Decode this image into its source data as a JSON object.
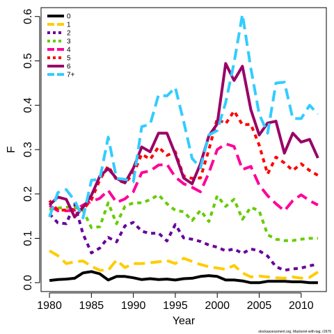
{
  "chart_data": {
    "type": "line",
    "xlabel": "Year",
    "ylabel": "F",
    "xlim": [
      1979,
      2013
    ],
    "ylim": [
      -0.02,
      0.62
    ],
    "x_ticks": [
      1980,
      1985,
      1990,
      1995,
      2000,
      2005,
      2010
    ],
    "y_ticks": [
      0.0,
      0.1,
      0.2,
      0.3,
      0.4,
      0.5,
      0.6
    ],
    "y_tick_labels": [
      "0.0",
      "0.1",
      "0.2",
      "0.3",
      "0.4",
      "0.5",
      "0.6"
    ],
    "legend_position": "top-left",
    "credit": "stockassessment.org, Mackerel-with-tag, r2676",
    "x": [
      1980,
      1981,
      1982,
      1983,
      1984,
      1985,
      1986,
      1987,
      1988,
      1989,
      1990,
      1991,
      1992,
      1993,
      1994,
      1995,
      1996,
      1997,
      1998,
      1999,
      2000,
      2001,
      2002,
      2003,
      2004,
      2005,
      2006,
      2007,
      2008,
      2009,
      2010,
      2011,
      2012
    ],
    "series": [
      {
        "name": "0",
        "color": "#000000",
        "dash": "solid",
        "values": [
          0.005,
          0.007,
          0.008,
          0.01,
          0.022,
          0.025,
          0.02,
          0.006,
          0.014,
          0.014,
          0.011,
          0.007,
          0.009,
          0.007,
          0.008,
          0.006,
          0.009,
          0.01,
          0.014,
          0.016,
          0.014,
          0.006,
          0.006,
          0.004,
          0.0,
          0.0,
          0.003,
          0.003,
          0.003,
          0.002,
          0.002,
          0.0,
          0.0
        ]
      },
      {
        "name": "1",
        "color": "#FFCC00",
        "dash": "long",
        "values": [
          0.072,
          0.061,
          0.043,
          0.047,
          0.049,
          0.037,
          0.028,
          0.028,
          0.051,
          0.034,
          0.043,
          0.043,
          0.045,
          0.047,
          0.05,
          0.043,
          0.055,
          0.048,
          0.041,
          0.036,
          0.033,
          0.03,
          0.039,
          0.022,
          0.013,
          0.015,
          0.013,
          0.011,
          0.01,
          0.013,
          0.01,
          0.012,
          0.024
        ]
      },
      {
        "name": "2",
        "color": "#660099",
        "dash": "short",
        "values": [
          0.155,
          0.135,
          0.133,
          0.177,
          0.11,
          0.067,
          0.078,
          0.102,
          0.092,
          0.128,
          0.136,
          0.116,
          0.111,
          0.112,
          0.094,
          0.131,
          0.101,
          0.098,
          0.093,
          0.085,
          0.08,
          0.072,
          0.076,
          0.066,
          0.076,
          0.072,
          0.06,
          0.036,
          0.028,
          0.031,
          0.033,
          0.038,
          0.042
        ]
      },
      {
        "name": "3",
        "color": "#66CC00",
        "dash": "short",
        "values": [
          0.165,
          0.168,
          0.17,
          0.17,
          0.163,
          0.124,
          0.126,
          0.18,
          0.133,
          0.172,
          0.18,
          0.18,
          0.187,
          0.198,
          0.178,
          0.163,
          0.16,
          0.14,
          0.163,
          0.138,
          0.196,
          0.172,
          0.188,
          0.143,
          0.17,
          0.162,
          0.108,
          0.098,
          0.095,
          0.095,
          0.098,
          0.1,
          0.1
        ]
      },
      {
        "name": "4",
        "color": "#FF0099",
        "dash": "long",
        "values": [
          0.174,
          0.162,
          0.162,
          0.163,
          0.175,
          0.183,
          0.19,
          0.208,
          0.181,
          0.189,
          0.205,
          0.248,
          0.252,
          0.265,
          0.267,
          0.238,
          0.223,
          0.215,
          0.205,
          0.248,
          0.3,
          0.313,
          0.307,
          0.255,
          0.262,
          0.22,
          0.196,
          0.178,
          0.162,
          0.185,
          0.198,
          0.185,
          0.175
        ]
      },
      {
        "name": "5",
        "color": "#FF0000",
        "dash": "short",
        "values": [
          0.185,
          0.163,
          0.164,
          0.165,
          0.165,
          0.187,
          0.232,
          0.263,
          0.232,
          0.225,
          0.245,
          0.29,
          0.278,
          0.306,
          0.287,
          0.295,
          0.24,
          0.235,
          0.236,
          0.3,
          0.37,
          0.358,
          0.387,
          0.356,
          0.357,
          0.31,
          0.245,
          0.283,
          0.27,
          0.253,
          0.268,
          0.253,
          0.242
        ]
      },
      {
        "name": "6",
        "color": "#990066",
        "dash": "solid",
        "values": [
          0.175,
          0.193,
          0.188,
          0.148,
          0.17,
          0.197,
          0.24,
          0.257,
          0.235,
          0.225,
          0.258,
          0.306,
          0.295,
          0.337,
          0.337,
          0.29,
          0.236,
          0.223,
          0.268,
          0.331,
          0.358,
          0.494,
          0.456,
          0.488,
          0.39,
          0.333,
          0.36,
          0.364,
          0.292,
          0.337,
          0.317,
          0.323,
          0.281
        ]
      },
      {
        "name": "7+",
        "color": "#33CCFF",
        "dash": "long",
        "values": [
          0.148,
          0.203,
          0.21,
          0.185,
          0.146,
          0.231,
          0.233,
          0.328,
          0.235,
          0.233,
          0.227,
          0.352,
          0.357,
          0.423,
          0.421,
          0.44,
          0.363,
          0.28,
          0.259,
          0.333,
          0.343,
          0.406,
          0.496,
          0.605,
          0.483,
          0.38,
          0.337,
          0.45,
          0.452,
          0.37,
          0.37,
          0.4,
          0.38
        ]
      }
    ]
  }
}
